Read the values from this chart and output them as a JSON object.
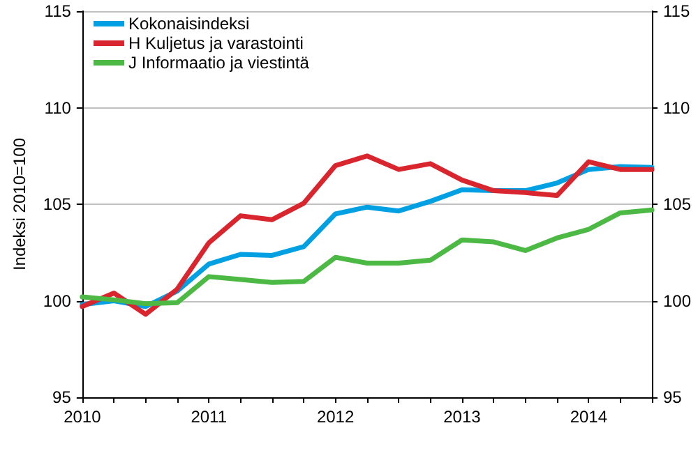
{
  "chart_data": {
    "type": "line",
    "ylabel": "Indeksi 2010=100",
    "x": [
      2010,
      2010.25,
      2010.5,
      2010.75,
      2011,
      2011.25,
      2011.5,
      2011.75,
      2012,
      2012.25,
      2012.5,
      2012.75,
      2013,
      2013.25,
      2013.5,
      2013.75,
      2014,
      2014.25,
      2014.5
    ],
    "xlim": [
      2010,
      2014.5
    ],
    "xticks": [
      2010,
      {
        "value": 2010.25,
        "label": null
      },
      {
        "value": 2010.5,
        "label": null
      },
      {
        "value": 2010.75,
        "label": null
      },
      2011,
      {
        "value": 2011.25,
        "label": null
      },
      {
        "value": 2011.5,
        "label": null
      },
      {
        "value": 2011.75,
        "label": null
      },
      2012,
      {
        "value": 2012.25,
        "label": null
      },
      {
        "value": 2012.5,
        "label": null
      },
      {
        "value": 2012.75,
        "label": null
      },
      2013,
      {
        "value": 2013.25,
        "label": null
      },
      {
        "value": 2013.5,
        "label": null
      },
      {
        "value": 2013.75,
        "label": null
      },
      2014,
      {
        "value": 2014.25,
        "label": null
      },
      {
        "value": 2014.5,
        "label": null
      }
    ],
    "ylim": [
      95,
      115
    ],
    "yticks": [
      95,
      100,
      105,
      110,
      115
    ],
    "y2lim": [
      95,
      115
    ],
    "y2ticks": [
      95,
      100,
      105,
      110,
      115
    ],
    "grid": "y",
    "legend": "top left",
    "marker": "none",
    "line_style": "solid",
    "series": [
      {
        "name": "Kokonaisindeksi",
        "color": "#00a0e3",
        "values": [
          99.8,
          100.0,
          99.7,
          100.5,
          101.9,
          102.4,
          102.35,
          102.8,
          104.5,
          104.85,
          104.65,
          105.15,
          105.75,
          105.7,
          105.7,
          106.1,
          106.8,
          106.95,
          106.9
        ]
      },
      {
        "name": "H Kuljetus ja varastointi",
        "color": "#d9262e",
        "values": [
          99.7,
          100.4,
          99.3,
          100.6,
          103.0,
          104.4,
          104.2,
          105.05,
          107.0,
          107.5,
          106.8,
          107.1,
          106.25,
          105.7,
          105.6,
          105.45,
          107.2,
          106.8,
          106.8
        ]
      },
      {
        "name": "J Informaatio ja viestintä",
        "color": "#4cb944",
        "values": [
          100.2,
          100.05,
          99.85,
          99.9,
          101.25,
          101.1,
          100.95,
          101.0,
          102.25,
          101.95,
          101.95,
          102.1,
          103.15,
          103.05,
          102.6,
          103.25,
          103.7,
          104.55,
          104.7
        ]
      }
    ]
  }
}
